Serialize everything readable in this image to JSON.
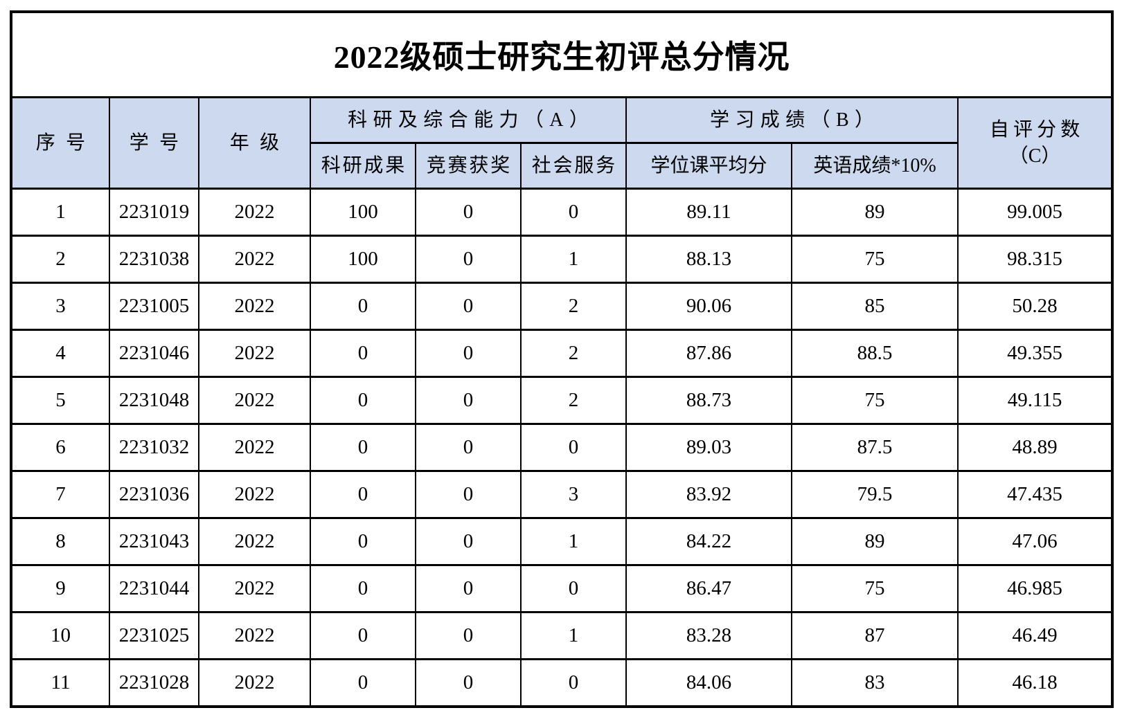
{
  "title": "2022级硕士研究生初评总分情况",
  "colors": {
    "header_bg": "#ccd9ee",
    "grid_border": "#000000",
    "text": "#000000",
    "page_bg": "#ffffff"
  },
  "table": {
    "header": {
      "serial": "序号",
      "student_id": "学号",
      "grade": "年级",
      "group_a": "科研及综合能力（A）",
      "group_b": "学习成绩（B）",
      "self_score_line1": "自评分数",
      "self_score_line2": "（C）",
      "sub_a1": "科研成果",
      "sub_a2": "竞赛获奖",
      "sub_a3": "社会服务",
      "sub_b1": "学位课平均分",
      "sub_b2": "英语成绩*10%"
    },
    "rows": [
      [
        "1",
        "2231019",
        "2022",
        "100",
        "0",
        "0",
        "89.11",
        "89",
        "99.005"
      ],
      [
        "2",
        "2231038",
        "2022",
        "100",
        "0",
        "1",
        "88.13",
        "75",
        "98.315"
      ],
      [
        "3",
        "2231005",
        "2022",
        "0",
        "0",
        "2",
        "90.06",
        "85",
        "50.28"
      ],
      [
        "4",
        "2231046",
        "2022",
        "0",
        "0",
        "2",
        "87.86",
        "88.5",
        "49.355"
      ],
      [
        "5",
        "2231048",
        "2022",
        "0",
        "0",
        "2",
        "88.73",
        "75",
        "49.115"
      ],
      [
        "6",
        "2231032",
        "2022",
        "0",
        "0",
        "0",
        "89.03",
        "87.5",
        "48.89"
      ],
      [
        "7",
        "2231036",
        "2022",
        "0",
        "0",
        "3",
        "83.92",
        "79.5",
        "47.435"
      ],
      [
        "8",
        "2231043",
        "2022",
        "0",
        "0",
        "1",
        "84.22",
        "89",
        "47.06"
      ],
      [
        "9",
        "2231044",
        "2022",
        "0",
        "0",
        "0",
        "86.47",
        "75",
        "46.985"
      ],
      [
        "10",
        "2231025",
        "2022",
        "0",
        "0",
        "1",
        "83.28",
        "87",
        "46.49"
      ],
      [
        "11",
        "2231028",
        "2022",
        "0",
        "0",
        "0",
        "84.06",
        "83",
        "46.18"
      ]
    ]
  }
}
